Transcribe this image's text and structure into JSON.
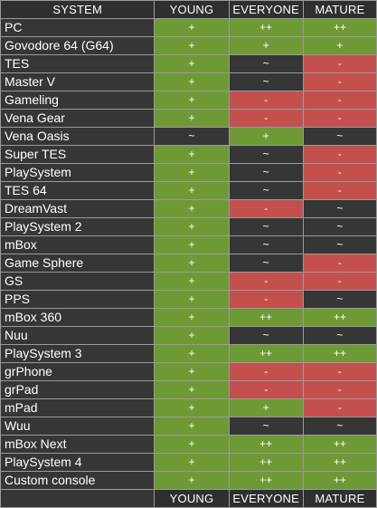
{
  "header": {
    "system": "SYSTEM",
    "young": "YOUNG",
    "everyone": "EVERYONE",
    "mature": "MATURE"
  },
  "footer": {
    "young": "YOUNG",
    "everyone": "EVERYONE",
    "mature": "MATURE"
  },
  "rows": [
    {
      "name": "PC",
      "young": "+",
      "everyone": "++",
      "mature": "++"
    },
    {
      "name": "Govodore 64 (G64)",
      "young": "+",
      "everyone": "+",
      "mature": "+"
    },
    {
      "name": "TES",
      "young": "+",
      "everyone": "~",
      "mature": "-"
    },
    {
      "name": "Master V",
      "young": "+",
      "everyone": "~",
      "mature": "-"
    },
    {
      "name": "Gameling",
      "young": "+",
      "everyone": "-",
      "mature": "-"
    },
    {
      "name": "Vena Gear",
      "young": "+",
      "everyone": "-",
      "mature": "-"
    },
    {
      "name": "Vena Oasis",
      "young": "~",
      "everyone": "+",
      "mature": "~"
    },
    {
      "name": "Super TES",
      "young": "+",
      "everyone": "~",
      "mature": "-"
    },
    {
      "name": "PlaySystem",
      "young": "+",
      "everyone": "~",
      "mature": "-"
    },
    {
      "name": "TES 64",
      "young": "+",
      "everyone": "~",
      "mature": "-"
    },
    {
      "name": "DreamVast",
      "young": "+",
      "everyone": "-",
      "mature": "~"
    },
    {
      "name": "PlaySystem 2",
      "young": "+",
      "everyone": "~",
      "mature": "~"
    },
    {
      "name": "mBox",
      "young": "+",
      "everyone": "~",
      "mature": "~"
    },
    {
      "name": "Game Sphere",
      "young": "+",
      "everyone": "~",
      "mature": "-"
    },
    {
      "name": "GS",
      "young": "+",
      "everyone": "-",
      "mature": "-"
    },
    {
      "name": "PPS",
      "young": "+",
      "everyone": "-",
      "mature": "~"
    },
    {
      "name": "mBox 360",
      "young": "+",
      "everyone": "++",
      "mature": "++"
    },
    {
      "name": "Nuu",
      "young": "+",
      "everyone": "~",
      "mature": "~"
    },
    {
      "name": "PlaySystem 3",
      "young": "+",
      "everyone": "++",
      "mature": "++"
    },
    {
      "name": "grPhone",
      "young": "+",
      "everyone": "-",
      "mature": "-"
    },
    {
      "name": "grPad",
      "young": "+",
      "everyone": "-",
      "mature": "-"
    },
    {
      "name": "mPad",
      "young": "+",
      "everyone": "+",
      "mature": "-"
    },
    {
      "name": "Wuu",
      "young": "+",
      "everyone": "~",
      "mature": "~"
    },
    {
      "name": "mBox Next",
      "young": "+",
      "everyone": "++",
      "mature": "++"
    },
    {
      "name": "PlaySystem 4",
      "young": "+",
      "everyone": "++",
      "mature": "++"
    },
    {
      "name": "Custom console",
      "young": "+",
      "everyone": "++",
      "mature": "++"
    }
  ],
  "colors": {
    "good": "#6e9a36",
    "bad": "#c4504e",
    "neutral": "#363636",
    "header_bg": "#2f2f2f",
    "grid": "#9a9a9a",
    "text": "#ffffff"
  }
}
